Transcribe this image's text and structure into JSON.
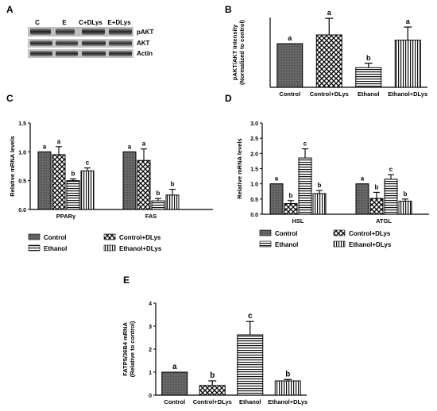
{
  "figure": {
    "panel_labels": [
      "A",
      "B",
      "C",
      "D",
      "E"
    ],
    "blot": {
      "lanes": [
        "C",
        "E",
        "C+DLys",
        "E+DLys"
      ],
      "bands": [
        "pAKT",
        "AKT",
        "Actin"
      ]
    },
    "legend": {
      "items": [
        "Control",
        "Control+DLys",
        "Ethanol",
        "Ethanol+DLys"
      ]
    }
  },
  "chart_data": [
    {
      "id": "B",
      "type": "bar",
      "ylabel": "pAKT/AKT Intensity",
      "ylabel2": "(Normalized to control)",
      "categories": [
        "Control",
        "Control+DLys",
        "Ethanol",
        "Ethanol+DLys"
      ],
      "values": [
        1.0,
        1.2,
        0.45,
        1.08
      ],
      "errors": [
        0.0,
        0.38,
        0.1,
        0.3
      ],
      "letters": [
        "a",
        "a",
        "b",
        "a"
      ],
      "ylim": [
        0,
        1.6
      ],
      "patterns": [
        "dots",
        "checker",
        "hstripe",
        "vstripe"
      ]
    },
    {
      "id": "C",
      "type": "bar",
      "ylabel": "Relative mRNA levels",
      "groups": [
        "PPARγ",
        "FAS"
      ],
      "ticks": [
        "0.0",
        "0.5",
        "1.0",
        "1.5"
      ],
      "ylim": [
        0,
        1.5
      ],
      "series": [
        {
          "name": "Control",
          "pattern": "dots",
          "values": [
            1.0,
            1.0
          ],
          "errors": [
            0,
            0
          ],
          "letters": [
            "a",
            "a"
          ]
        },
        {
          "name": "Control+DLys",
          "pattern": "checker",
          "values": [
            0.95,
            0.85
          ],
          "errors": [
            0.14,
            0.2
          ],
          "letters": [
            "a",
            "a"
          ]
        },
        {
          "name": "Ethanol",
          "pattern": "hstripe",
          "values": [
            0.5,
            0.15
          ],
          "errors": [
            0.03,
            0.04
          ],
          "letters": [
            "b",
            "b"
          ]
        },
        {
          "name": "Ethanol+DLys",
          "pattern": "vstripe",
          "values": [
            0.67,
            0.25
          ],
          "errors": [
            0.05,
            0.1
          ],
          "letters": [
            "c",
            "b"
          ]
        }
      ]
    },
    {
      "id": "D",
      "type": "bar",
      "ylabel": "Relative mRNA levels",
      "groups": [
        "HSL",
        "ATGL"
      ],
      "ticks": [
        "0.0",
        "0.5",
        "1.0",
        "1.5",
        "2.0",
        "2.5",
        "3.0"
      ],
      "ylim": [
        0,
        3.0
      ],
      "series": [
        {
          "name": "Control",
          "pattern": "dots",
          "values": [
            1.0,
            1.0
          ],
          "errors": [
            0,
            0
          ],
          "letters": [
            "a",
            "a"
          ]
        },
        {
          "name": "Control+DLys",
          "pattern": "checker",
          "values": [
            0.35,
            0.52
          ],
          "errors": [
            0.1,
            0.2
          ],
          "letters": [
            "b",
            "b"
          ]
        },
        {
          "name": "Ethanol",
          "pattern": "hstripe",
          "values": [
            1.85,
            1.15
          ],
          "errors": [
            0.3,
            0.15
          ],
          "letters": [
            "c",
            "c"
          ]
        },
        {
          "name": "Ethanol+DLys",
          "pattern": "vstripe",
          "values": [
            0.68,
            0.43
          ],
          "errors": [
            0.1,
            0.07
          ],
          "letters": [
            "b",
            "b"
          ]
        }
      ]
    },
    {
      "id": "E",
      "type": "bar",
      "ylabel": "FATP5/36B4 mRNA",
      "ylabel2": "(Relative to control)",
      "categories": [
        "Control",
        "Control+DLys",
        "Ethanol",
        "Ethanol+DLys"
      ],
      "values": [
        1.0,
        0.42,
        2.62,
        0.62
      ],
      "errors": [
        0.0,
        0.2,
        0.58,
        0.06
      ],
      "letters": [
        "a",
        "b",
        "c",
        "b"
      ],
      "ticks": [
        "0",
        "1",
        "2",
        "3",
        "4"
      ],
      "ylim": [
        0,
        4
      ],
      "patterns": [
        "dots",
        "checker",
        "hstripe",
        "vstripe"
      ]
    }
  ]
}
